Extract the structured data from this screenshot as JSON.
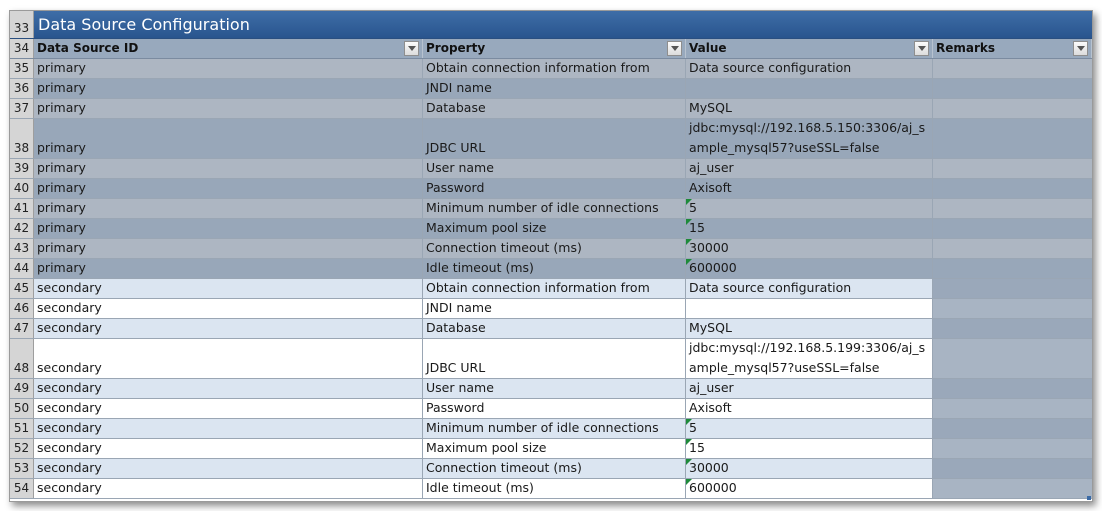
{
  "title_row": {
    "row_number": "33",
    "text": "Data Source Configuration"
  },
  "header_row": {
    "row_number": "34",
    "columns": [
      "Data Source ID",
      "Property",
      "Value",
      "Remarks"
    ]
  },
  "rows": [
    {
      "n": "35",
      "id": "primary",
      "property": "Obtain connection information from",
      "value": "Data source configuration",
      "remarks": ""
    },
    {
      "n": "36",
      "id": "primary",
      "property": "JNDI name",
      "value": "",
      "remarks": ""
    },
    {
      "n": "37",
      "id": "primary",
      "property": "Database",
      "value": "MySQL",
      "remarks": ""
    },
    {
      "n": "38",
      "id": "primary",
      "property": "JDBC URL",
      "value": "jdbc:mysql://192.168.5.150:3306/aj_sample_mysql57?useSSL=false",
      "remarks": ""
    },
    {
      "n": "39",
      "id": "primary",
      "property": "User name",
      "value": "aj_user",
      "remarks": ""
    },
    {
      "n": "40",
      "id": "primary",
      "property": "Password",
      "value": "Axisoft",
      "remarks": ""
    },
    {
      "n": "41",
      "id": "primary",
      "property": "Minimum number of idle connections",
      "value": "5",
      "remarks": ""
    },
    {
      "n": "42",
      "id": "primary",
      "property": "Maximum pool size",
      "value": "15",
      "remarks": ""
    },
    {
      "n": "43",
      "id": "primary",
      "property": "Connection timeout (ms)",
      "value": "30000",
      "remarks": ""
    },
    {
      "n": "44",
      "id": "primary",
      "property": "Idle timeout (ms)",
      "value": "600000",
      "remarks": ""
    },
    {
      "n": "45",
      "id": "secondary",
      "property": "Obtain connection information from",
      "value": "Data source configuration",
      "remarks": ""
    },
    {
      "n": "46",
      "id": "secondary",
      "property": "JNDI name",
      "value": "",
      "remarks": ""
    },
    {
      "n": "47",
      "id": "secondary",
      "property": "Database",
      "value": "MySQL",
      "remarks": ""
    },
    {
      "n": "48",
      "id": "secondary",
      "property": "JDBC URL",
      "value": "jdbc:mysql://192.168.5.199:3306/aj_sample_mysql57?useSSL=false",
      "remarks": ""
    },
    {
      "n": "49",
      "id": "secondary",
      "property": "User name",
      "value": "aj_user",
      "remarks": ""
    },
    {
      "n": "50",
      "id": "secondary",
      "property": "Password",
      "value": "Axisoft",
      "remarks": ""
    },
    {
      "n": "51",
      "id": "secondary",
      "property": "Minimum number of idle connections",
      "value": "5",
      "remarks": ""
    },
    {
      "n": "52",
      "id": "secondary",
      "property": "Maximum pool size",
      "value": "15",
      "remarks": ""
    },
    {
      "n": "53",
      "id": "secondary",
      "property": "Connection timeout (ms)",
      "value": "30000",
      "remarks": ""
    },
    {
      "n": "54",
      "id": "secondary",
      "property": "Idle timeout (ms)",
      "value": "600000",
      "remarks": ""
    }
  ],
  "icons": {
    "filter": "filter-dropdown-icon",
    "number_as_text": "error-indicator-icon"
  }
}
